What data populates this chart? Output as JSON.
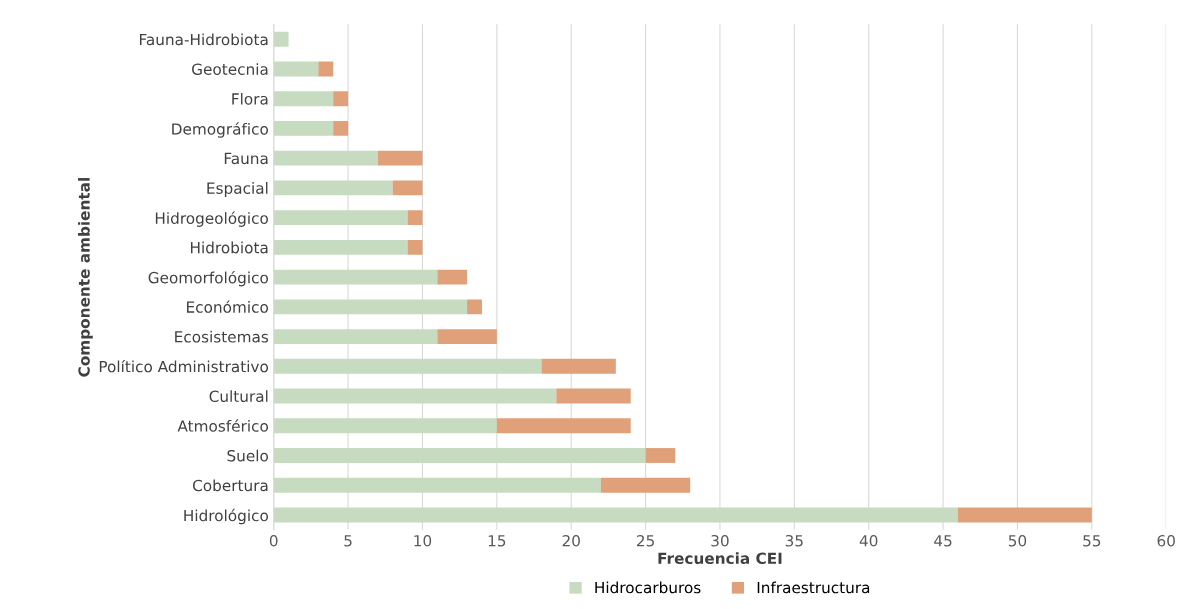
{
  "chart_data": {
    "type": "bar",
    "orientation": "horizontal",
    "stacked": true,
    "xlabel": "Frecuencia CEI",
    "ylabel": "Componente ambiental",
    "categories": [
      "Fauna-Hidrobiota",
      "Geotecnia",
      "Flora",
      "Demográfico",
      "Fauna",
      "Espacial",
      "Hidrogeológico",
      "Hidrobiota",
      "Geomorfológico",
      "Económico",
      "Ecosistemas",
      "Político Administrativo",
      "Cultural",
      "Atmosférico",
      "Suelo",
      "Cobertura",
      "Hidrológico"
    ],
    "series": [
      {
        "name": "Hidrocarburos",
        "color": "#c6dbbf",
        "values": [
          1,
          3,
          4,
          4,
          7,
          8,
          9,
          9,
          11,
          13,
          11,
          18,
          19,
          15,
          25,
          22,
          46
        ]
      },
      {
        "name": "Infraestructura",
        "color": "#e0a07a",
        "values": [
          0,
          1,
          1,
          1,
          3,
          2,
          1,
          1,
          2,
          1,
          4,
          5,
          5,
          9,
          2,
          6,
          9
        ]
      }
    ],
    "xlim": [
      0,
      60
    ],
    "xticks": [
      0,
      5,
      10,
      15,
      20,
      25,
      30,
      35,
      40,
      45,
      50,
      55,
      60
    ],
    "grid": "x",
    "legend": "bottom"
  }
}
